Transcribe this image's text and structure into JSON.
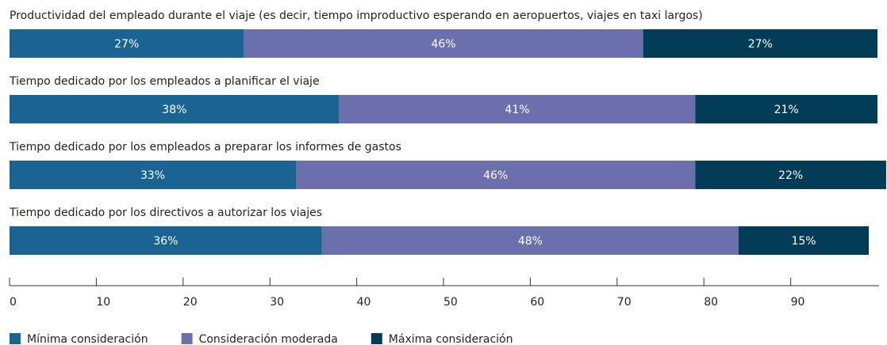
{
  "chart_data": {
    "type": "stacked-bar-horizontal",
    "categories": [
      "Productividad del empleado durante el viaje (es decir, tiempo improductivo esperando en aeropuertos, viajes en taxi largos)",
      "Tiempo dedicado por los empleados a planificar el viaje",
      "Tiempo dedicado por los empleados a preparar los informes de gastos",
      "Tiempo dedicado por los directivos a autorizar los viajes"
    ],
    "series": [
      {
        "name": "Mínima consideración",
        "color": "#1a6494",
        "values": [
          27,
          38,
          33,
          36
        ],
        "value_labels": [
          "27%",
          "38%",
          "33%",
          "36%"
        ]
      },
      {
        "name": "Consideración moderada",
        "color": "#6b6fab",
        "values": [
          46,
          41,
          46,
          48
        ],
        "value_labels": [
          "46%",
          "41%",
          "46%",
          "48%"
        ]
      },
      {
        "name": "Máxima consideración",
        "color": "#003c55",
        "values": [
          27,
          21,
          22,
          15
        ],
        "value_labels": [
          "27%",
          "21%",
          "22%",
          "15%"
        ]
      }
    ],
    "xlim": [
      0,
      100
    ],
    "xticks": [
      0,
      10,
      20,
      30,
      40,
      50,
      60,
      70,
      80,
      90
    ],
    "legend": "bottom-left"
  }
}
